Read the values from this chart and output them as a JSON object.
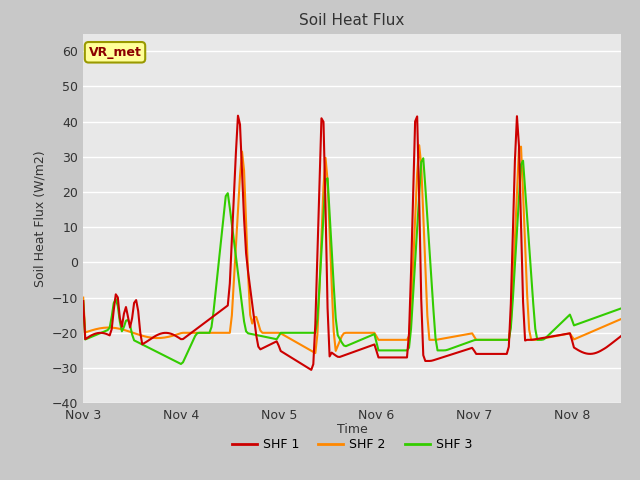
{
  "title": "Soil Heat Flux",
  "ylabel": "Soil Heat Flux (W/m2)",
  "xlabel": "Time",
  "ylim": [
    -40,
    65
  ],
  "yticks": [
    -40,
    -30,
    -20,
    -10,
    0,
    10,
    20,
    30,
    40,
    50,
    60
  ],
  "fig_bg_color": "#c8c8c8",
  "plot_bg_color": "#e8e8e8",
  "grid_color": "#ffffff",
  "annotation_text": "VR_met",
  "annotation_bg": "#ffff99",
  "annotation_border": "#999900",
  "series_colors": [
    "#cc0000",
    "#ff8800",
    "#33cc00"
  ],
  "series_labels": [
    "SHF 1",
    "SHF 2",
    "SHF 3"
  ],
  "line_width": 1.5,
  "x_tick_labels": [
    "Nov 3",
    "Nov 4",
    "Nov 5",
    "Nov 6",
    "Nov 7",
    "Nov 8"
  ],
  "x_tick_positions": [
    0,
    48,
    96,
    144,
    192,
    240
  ]
}
